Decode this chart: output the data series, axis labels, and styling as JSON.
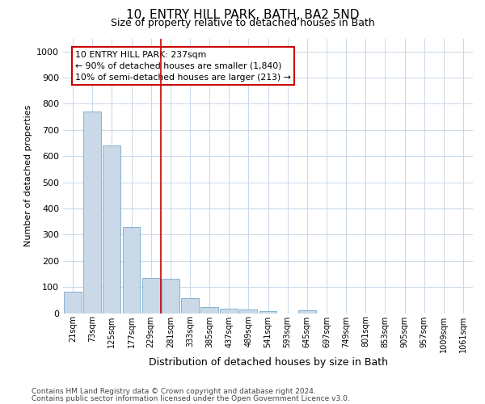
{
  "title": "10, ENTRY HILL PARK, BATH, BA2 5ND",
  "subtitle": "Size of property relative to detached houses in Bath",
  "xlabel": "Distribution of detached houses by size in Bath",
  "ylabel": "Number of detached properties",
  "footer_line1": "Contains HM Land Registry data © Crown copyright and database right 2024.",
  "footer_line2": "Contains public sector information licensed under the Open Government Licence v3.0.",
  "bar_labels": [
    "21sqm",
    "73sqm",
    "125sqm",
    "177sqm",
    "229sqm",
    "281sqm",
    "333sqm",
    "385sqm",
    "437sqm",
    "489sqm",
    "541sqm",
    "593sqm",
    "645sqm",
    "697sqm",
    "749sqm",
    "801sqm",
    "853sqm",
    "905sqm",
    "957sqm",
    "1009sqm",
    "1061sqm"
  ],
  "bar_values": [
    83,
    770,
    640,
    330,
    133,
    130,
    57,
    22,
    17,
    13,
    9,
    0,
    10,
    0,
    0,
    0,
    0,
    0,
    0,
    0,
    0
  ],
  "bar_color": "#c9d9e8",
  "bar_edge_color": "#7aaac8",
  "ylim": [
    0,
    1050
  ],
  "yticks": [
    0,
    100,
    200,
    300,
    400,
    500,
    600,
    700,
    800,
    900,
    1000
  ],
  "annotation_line1": "10 ENTRY HILL PARK: 237sqm",
  "annotation_line2": "← 90% of detached houses are smaller (1,840)",
  "annotation_line3": "10% of semi-detached houses are larger (213) →",
  "vline_x_index": 4.5,
  "annotation_box_color": "#ffffff",
  "annotation_border_color": "#cc0000",
  "vline_color": "#cc0000",
  "background_color": "#ffffff",
  "grid_color": "#c8d8e8"
}
